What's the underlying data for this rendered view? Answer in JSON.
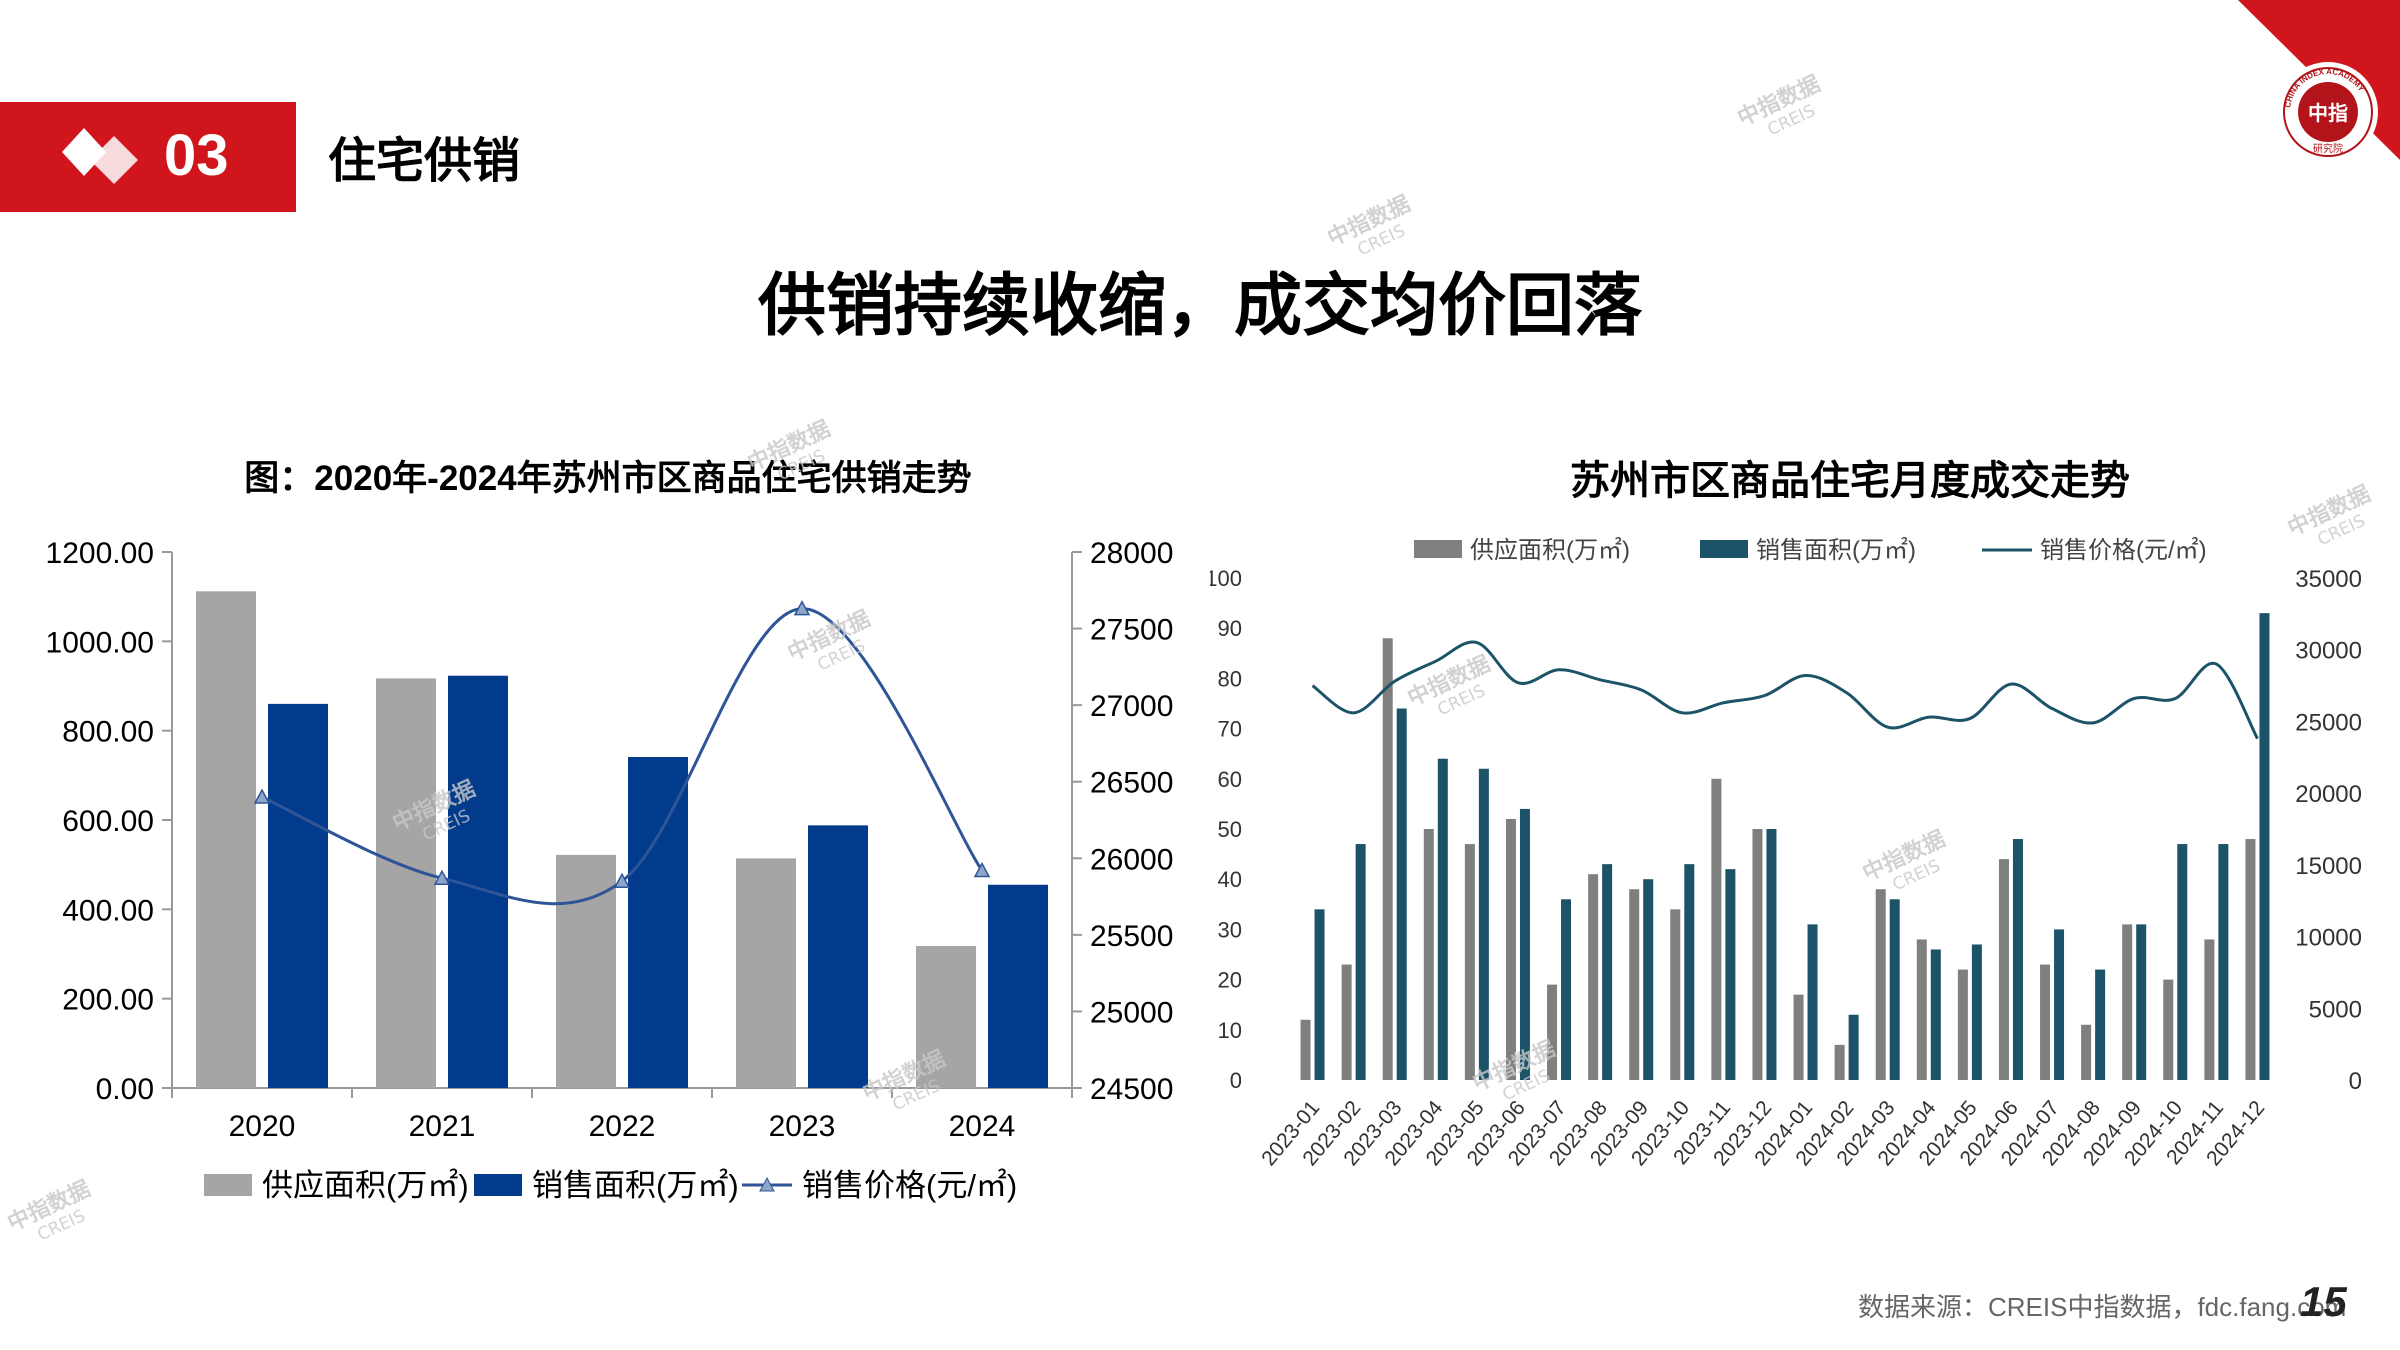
{
  "section": {
    "number": "03",
    "title": "住宅供销"
  },
  "page_title": "供销持续收缩，成交均价回落",
  "footer": {
    "source": "数据来源：CREIS中指数据，fdc.fang.com",
    "page": "15"
  },
  "logo": {
    "text_top": "CHINA INDEX ACADEMY",
    "text_center": "中指",
    "text_bottom": "研究院"
  },
  "watermark": {
    "line1": "中指数据",
    "line2": "CREIS"
  },
  "colors": {
    "brand_red": "#d0161c",
    "annual_supply": "#a5a5a5",
    "annual_sales": "#023b8c",
    "annual_price": "#2e5597",
    "monthly_supply": "#7f7f7f",
    "monthly_sales": "#1d5369",
    "monthly_price": "#1d5369"
  },
  "chart_data": [
    {
      "type": "bar",
      "title": "图：2020年-2024年苏州市区商品住宅供销走势",
      "categories": [
        "2020",
        "2021",
        "2022",
        "2023",
        "2024"
      ],
      "series": [
        {
          "name": "供应面积(万㎡)",
          "type": "bar",
          "axis": "left",
          "values": [
            1112,
            917,
            522,
            514,
            318
          ]
        },
        {
          "name": "销售面积(万㎡)",
          "type": "bar",
          "axis": "left",
          "values": [
            860,
            923,
            741,
            588,
            455
          ]
        },
        {
          "name": "销售价格(元/㎡)",
          "type": "line",
          "axis": "right",
          "values": [
            26400,
            25870,
            25850,
            27630,
            25920
          ]
        }
      ],
      "ylim_left": [
        0,
        1200
      ],
      "yticks_left": [
        "0.00",
        "200.00",
        "400.00",
        "600.00",
        "800.00",
        "1000.00",
        "1200.00"
      ],
      "ylim_right": [
        24500,
        28000
      ],
      "yticks_right": [
        "24500",
        "25000",
        "25500",
        "26000",
        "26500",
        "27000",
        "27500",
        "28000"
      ],
      "legend": "bottom",
      "grid": false
    },
    {
      "type": "bar",
      "title": "苏州市区商品住宅月度成交走势",
      "categories": [
        "2023-01",
        "2023-02",
        "2023-03",
        "2023-04",
        "2023-05",
        "2023-06",
        "2023-07",
        "2023-08",
        "2023-09",
        "2023-10",
        "2023-11",
        "2023-12",
        "2024-01",
        "2024-02",
        "2024-03",
        "2024-04",
        "2024-05",
        "2024-06",
        "2024-07",
        "2024-08",
        "2024-09",
        "2024-10",
        "2024-11",
        "2024-12"
      ],
      "series": [
        {
          "name": "供应面积(万㎡)",
          "type": "bar",
          "axis": "left",
          "values": [
            12,
            23,
            88,
            50,
            47,
            52,
            19,
            41,
            38,
            34,
            60,
            50,
            17,
            7,
            38,
            28,
            22,
            44,
            23,
            11,
            31,
            20,
            28,
            48
          ]
        },
        {
          "name": "销售面积(万㎡)",
          "type": "bar",
          "axis": "left",
          "values": [
            34,
            47,
            74,
            64,
            62,
            54,
            36,
            43,
            40,
            43,
            42,
            50,
            31,
            13,
            36,
            26,
            27,
            48,
            30,
            22,
            31,
            47,
            47,
            93
          ]
        },
        {
          "name": "销售价格(元/㎡)",
          "type": "line",
          "axis": "right",
          "values": [
            27500,
            25600,
            27800,
            29200,
            30500,
            27700,
            28600,
            27900,
            27200,
            25600,
            26300,
            26800,
            28200,
            27000,
            24600,
            25300,
            25200,
            27600,
            25900,
            24900,
            26600,
            26600,
            29000,
            23800
          ]
        }
      ],
      "ylim_left": [
        0,
        100
      ],
      "yticks_left": [
        "0",
        "10",
        "20",
        "30",
        "40",
        "50",
        "60",
        "70",
        "80",
        "90",
        "100"
      ],
      "ylim_right": [
        0,
        35000
      ],
      "yticks_right": [
        "0",
        "5000",
        "10000",
        "15000",
        "20000",
        "25000",
        "30000",
        "35000"
      ],
      "legend": "top",
      "grid": false
    }
  ]
}
